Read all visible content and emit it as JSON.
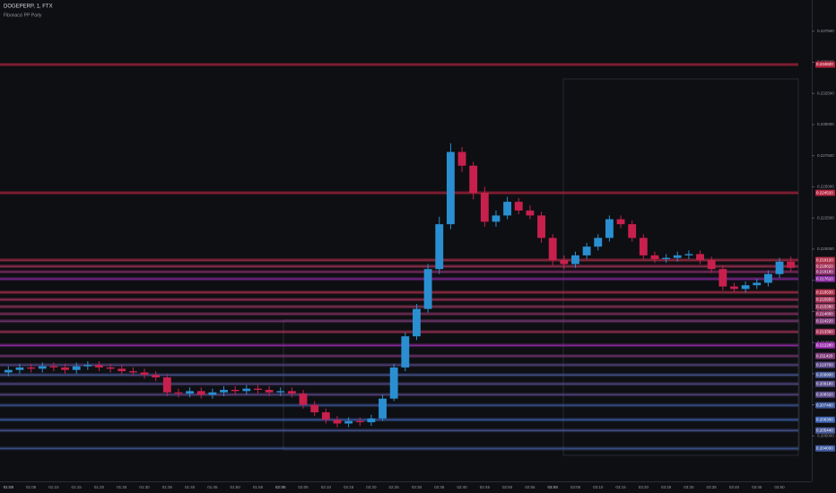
{
  "chart_data": {
    "type": "candlestick",
    "title": "DOGEPERP, 1, FTX",
    "subtitle": "Fibonacci PP Party",
    "up_color": "#2a8fd0",
    "down_color": "#c8204d",
    "grid": false,
    "ylim": [
      0.2015,
      0.24
    ],
    "yticks": [
      {
        "value": 0.205,
        "label": "0.205000"
      },
      {
        "value": 0.2075,
        "label": "0.207500"
      },
      {
        "value": 0.21,
        "label": "0.210000"
      },
      {
        "value": 0.2125,
        "label": "0.212500"
      },
      {
        "value": 0.215,
        "label": "0.215000"
      },
      {
        "value": 0.2175,
        "label": "0.217500"
      },
      {
        "value": 0.22,
        "label": "0.220000"
      },
      {
        "value": 0.2225,
        "label": "0.222500"
      },
      {
        "value": 0.225,
        "label": "0.225000"
      },
      {
        "value": 0.2275,
        "label": "0.227500"
      },
      {
        "value": 0.23,
        "label": "0.230000"
      },
      {
        "value": 0.2325,
        "label": "0.232500"
      },
      {
        "value": 0.235,
        "label": "0.235000"
      },
      {
        "value": 0.2375,
        "label": "0.237500"
      }
    ],
    "categories": [
      "01:00",
      null,
      "01:05",
      null,
      "01:10",
      null,
      "01:15",
      null,
      "01:20",
      null,
      "01:25",
      null,
      "01:30",
      null,
      "01:35",
      null,
      "01:40",
      null,
      "01:45",
      null,
      "01:50",
      null,
      "01:55",
      null,
      "02:00",
      null,
      "02:05",
      null,
      "02:10",
      null,
      "02:15",
      null,
      "02:20",
      null,
      "02:25",
      null,
      "02:30",
      null,
      "02:35",
      null,
      "02:40",
      null,
      "02:45",
      null,
      "02:50",
      null,
      "02:55",
      null,
      "03:00",
      null,
      "03:05",
      null,
      "03:10",
      null,
      "03:15",
      null,
      "03:20",
      null,
      "03:25",
      null,
      "03:30",
      null,
      "03:35",
      null,
      "03:40",
      null,
      "03:45",
      null,
      "03:50",
      null
    ],
    "open": [
      0.2101,
      0.2103,
      0.2105,
      0.2104,
      0.2106,
      0.2105,
      0.2103,
      0.2106,
      0.2107,
      0.2105,
      0.2104,
      0.2102,
      0.2101,
      0.2099,
      0.2097,
      0.2085,
      0.2084,
      0.2086,
      0.2083,
      0.2085,
      0.2087,
      0.2086,
      0.2088,
      0.2087,
      0.2085,
      0.2086,
      0.2084,
      0.2075,
      0.2069,
      0.2063,
      0.206,
      0.2062,
      0.2061,
      0.2064,
      0.208,
      0.2105,
      0.213,
      0.2152,
      0.2184,
      0.222,
      0.2278,
      0.2267,
      0.2245,
      0.2222,
      0.2227,
      0.2238,
      0.2231,
      0.2227,
      0.2209,
      0.2191,
      0.2188,
      0.2195,
      0.2202,
      0.2209,
      0.2224,
      0.222,
      0.2209,
      0.2195,
      0.2192,
      0.2193,
      0.2195,
      0.2196,
      0.2191,
      0.2184,
      0.217,
      0.2168,
      0.2171,
      0.2173,
      0.218,
      0.219
    ],
    "high": [
      0.2106,
      0.2108,
      0.2108,
      0.2109,
      0.2109,
      0.2108,
      0.2109,
      0.211,
      0.211,
      0.2108,
      0.2107,
      0.2105,
      0.2104,
      0.2102,
      0.21,
      0.2088,
      0.2089,
      0.2089,
      0.2088,
      0.209,
      0.209,
      0.2091,
      0.2091,
      0.209,
      0.2089,
      0.2089,
      0.2087,
      0.2078,
      0.2072,
      0.2066,
      0.2065,
      0.2065,
      0.2067,
      0.2083,
      0.2108,
      0.2133,
      0.2156,
      0.2188,
      0.2226,
      0.2285,
      0.2282,
      0.227,
      0.225,
      0.2231,
      0.2242,
      0.2241,
      0.2235,
      0.223,
      0.2212,
      0.2195,
      0.2198,
      0.2205,
      0.2212,
      0.2227,
      0.2227,
      0.2223,
      0.2212,
      0.2198,
      0.2196,
      0.2198,
      0.2199,
      0.2199,
      0.2194,
      0.2187,
      0.2173,
      0.2174,
      0.2176,
      0.2183,
      0.2193,
      0.2194
    ],
    "low": [
      0.2098,
      0.21,
      0.2101,
      0.2101,
      0.2102,
      0.21,
      0.21,
      0.2103,
      0.2102,
      0.2101,
      0.2099,
      0.2098,
      0.2096,
      0.2094,
      0.2082,
      0.2081,
      0.2081,
      0.208,
      0.208,
      0.2082,
      0.2083,
      0.2083,
      0.2084,
      0.2082,
      0.2082,
      0.2081,
      0.2072,
      0.2066,
      0.206,
      0.2057,
      0.2057,
      0.2058,
      0.2058,
      0.2062,
      0.2078,
      0.2102,
      0.2127,
      0.2149,
      0.218,
      0.2216,
      0.2262,
      0.224,
      0.2218,
      0.2218,
      0.2224,
      0.2228,
      0.2224,
      0.2205,
      0.2187,
      0.2184,
      0.2185,
      0.2192,
      0.2199,
      0.2206,
      0.2217,
      0.2206,
      0.2192,
      0.2189,
      0.2189,
      0.219,
      0.2192,
      0.2188,
      0.2181,
      0.2167,
      0.2165,
      0.2165,
      0.2168,
      0.217,
      0.2177,
      0.2182
    ],
    "close": [
      0.2103,
      0.2105,
      0.2104,
      0.2106,
      0.2105,
      0.2103,
      0.2106,
      0.2107,
      0.2105,
      0.2104,
      0.2102,
      0.2101,
      0.2099,
      0.2097,
      0.2085,
      0.2084,
      0.2086,
      0.2083,
      0.2085,
      0.2087,
      0.2086,
      0.2088,
      0.2087,
      0.2085,
      0.2086,
      0.2084,
      0.2075,
      0.2069,
      0.2063,
      0.206,
      0.2062,
      0.2061,
      0.2064,
      0.208,
      0.2105,
      0.213,
      0.2152,
      0.2184,
      0.222,
      0.2278,
      0.2267,
      0.2245,
      0.2222,
      0.2227,
      0.2238,
      0.2231,
      0.2227,
      0.2209,
      0.2191,
      0.2188,
      0.2195,
      0.2202,
      0.2209,
      0.2224,
      0.222,
      0.2209,
      0.2195,
      0.2192,
      0.2193,
      0.2195,
      0.2196,
      0.2191,
      0.2184,
      0.217,
      0.2168,
      0.2171,
      0.2173,
      0.218,
      0.219,
      0.2185
    ],
    "levels": {
      "values": [
        0.23482,
        0.22452,
        0.21912,
        0.21862,
        0.21818,
        0.21761,
        0.21653,
        0.21595,
        0.21538,
        0.2148,
        0.21422,
        0.21336,
        0.21228,
        0.21142,
        0.2107,
        0.2099,
        0.20918,
        0.20832,
        0.20746,
        0.2063,
        0.20544,
        0.204
      ],
      "value_labels": [
        "0.234820",
        "0.224520",
        "0.219120",
        "0.218620",
        "0.218180",
        "0.217610",
        "0.216530",
        "0.215950",
        "0.215380",
        "0.214800",
        "0.214220",
        "0.213360",
        "0.212280",
        "0.211420",
        "0.210700",
        "0.209900",
        "0.209180",
        "0.208320",
        "0.207460",
        "0.206300",
        "0.205440",
        "0.204000"
      ],
      "colors": [
        "#b3243f",
        "#b3243f",
        "#b0304a",
        "#a8355a",
        "#8e2f6e",
        "#8a2aa0",
        "#b0304a",
        "#a8355a",
        "#9a3a60",
        "#8e3366",
        "#7e3a78",
        "#a8355a",
        "#9c2fb0",
        "#7e3a78",
        "#5c4a8a",
        "#4a5a9a",
        "#5a4d8d",
        "#5c4a8a",
        "#3f5a9e",
        "#3d62b0",
        "#4a5a9a",
        "#3f5a9e"
      ]
    }
  }
}
